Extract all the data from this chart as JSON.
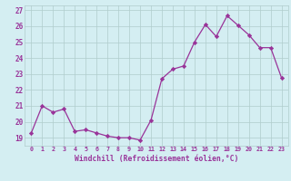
{
  "x": [
    0,
    1,
    2,
    3,
    4,
    5,
    6,
    7,
    8,
    9,
    10,
    11,
    12,
    13,
    14,
    15,
    16,
    17,
    18,
    19,
    20,
    21,
    22,
    23
  ],
  "y": [
    19.3,
    21.0,
    20.6,
    20.8,
    19.4,
    19.5,
    19.3,
    19.1,
    19.0,
    19.0,
    18.85,
    20.1,
    22.7,
    23.3,
    23.5,
    25.0,
    26.1,
    25.35,
    26.65,
    26.05,
    25.45,
    24.65,
    24.65,
    22.75
  ],
  "xlabel": "Windchill (Refroidissement éolien,°C)",
  "line_color": "#993399",
  "marker": "D",
  "marker_size": 2.2,
  "background_color": "#d4eef2",
  "grid_color": "#b0cccc",
  "ylim": [
    18.5,
    27.3
  ],
  "yticks": [
    19,
    20,
    21,
    22,
    23,
    24,
    25,
    26,
    27
  ],
  "xtick_labels": [
    "0",
    "1",
    "2",
    "3",
    "4",
    "5",
    "6",
    "7",
    "8",
    "9",
    "10",
    "11",
    "12",
    "13",
    "14",
    "15",
    "16",
    "17",
    "18",
    "19",
    "20",
    "21",
    "22",
    "23"
  ]
}
